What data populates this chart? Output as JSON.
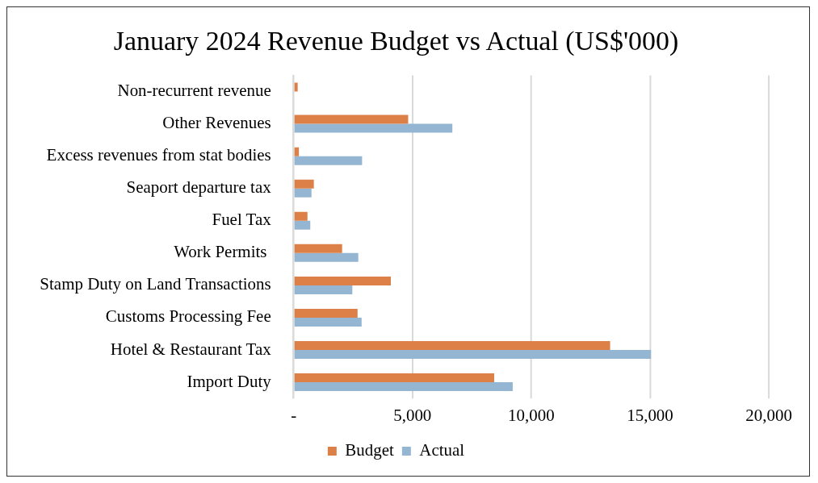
{
  "chart_data": {
    "type": "bar",
    "orientation": "horizontal",
    "title": "January 2024 Revenue Budget vs Actual (US$'000)",
    "categories": [
      "Non-recurrent revenue",
      "Other Revenues",
      "Excess revenues from stat bodies",
      "Seaport departure tax",
      "Fuel Tax",
      "Work Permits ",
      "Stamp Duty on Land Transactions",
      "Customs Processing Fee",
      "Hotel & Restaurant Tax",
      "Import Duty"
    ],
    "series": [
      {
        "name": "Budget",
        "color": "#dd8047",
        "values": [
          170,
          4820,
          220,
          850,
          580,
          2040,
          4090,
          2690,
          13320,
          8440
        ]
      },
      {
        "name": "Actual",
        "color": "#94b6d2",
        "values": [
          0,
          6680,
          2880,
          750,
          700,
          2720,
          2470,
          2860,
          15040,
          9220
        ]
      }
    ],
    "xlim": [
      0,
      20000
    ],
    "xticks": [
      {
        "value": 0,
        "label": "-"
      },
      {
        "value": 5000,
        "label": "5,000"
      },
      {
        "value": 10000,
        "label": "10,000"
      },
      {
        "value": 15000,
        "label": "15,000"
      },
      {
        "value": 20000,
        "label": "20,000"
      }
    ],
    "grid": "x",
    "legend": "bottom"
  }
}
